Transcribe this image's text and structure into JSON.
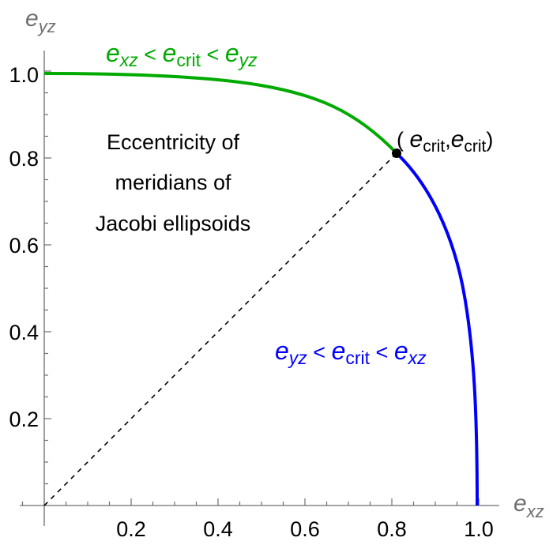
{
  "chart_data": {
    "type": "line",
    "title": "",
    "xlabel": "e_xz",
    "ylabel": "e_yz",
    "xlim": [
      -0.055,
      1.05
    ],
    "ylim": [
      -0.07,
      1.05
    ],
    "grid": false,
    "x_ticks": [
      "0.2",
      "0.4",
      "0.6",
      "0.8",
      "1.0"
    ],
    "y_ticks": [
      "0.2",
      "0.4",
      "0.6",
      "0.8",
      "1.0"
    ],
    "series": [
      {
        "name": "e_xz < e_crit < e_yz",
        "color": "#00aa00",
        "x": [
          0.0,
          0.08,
          0.171,
          0.262,
          0.353,
          0.444,
          0.535,
          0.625,
          0.716,
          0.765,
          0.811
        ],
        "y": [
          0.995,
          0.994,
          0.991,
          0.987,
          0.98,
          0.975,
          0.958,
          0.933,
          0.891,
          0.86,
          0.811
        ]
      },
      {
        "name": "e_yz < e_crit < e_xz",
        "color": "#0000ff",
        "x": [
          0.811,
          0.862,
          0.907,
          0.935,
          0.94,
          0.96,
          0.975,
          0.985,
          0.99,
          0.995,
          0.996
        ],
        "y": [
          0.811,
          0.745,
          0.673,
          0.6,
          0.618,
          0.527,
          0.436,
          0.345,
          0.3,
          0.109,
          0.0
        ]
      },
      {
        "name": "diagonal",
        "color": "#000000",
        "style": "dashed",
        "x": [
          0.0,
          0.811
        ],
        "y": [
          0.0,
          0.811
        ]
      }
    ],
    "points": [
      {
        "label": "( e_crit , e_crit )",
        "x": 0.811,
        "y": 0.811,
        "color": "#000000"
      }
    ],
    "annotations": [
      "Eccentricity of",
      "meridians of",
      "Jacobi ellipsoids"
    ]
  },
  "labels": {
    "x_axis": {
      "base": "e",
      "sub": "xz"
    },
    "y_axis": {
      "base": "e",
      "sub": "yz"
    },
    "green_region": {
      "a": "e",
      "a_sub": "xz",
      "op1": " < ",
      "b": "e",
      "b_sub": "crit",
      "op2": " < ",
      "c": "e",
      "c_sub": "yz"
    },
    "blue_region": {
      "a": "e",
      "a_sub": "yz",
      "op1": " < ",
      "b": "e",
      "b_sub": "crit",
      "op2": " < ",
      "c": "e",
      "c_sub": "xz"
    },
    "crit_point": {
      "open": "( ",
      "e1": "e",
      "sub1": "crit",
      "comma": ",",
      "e2": "e",
      "sub2": "crit",
      "close": ")"
    },
    "description": [
      "Eccentricity of",
      "meridians of",
      "Jacobi ellipsoids"
    ],
    "x_ticks": [
      "0.2",
      "0.4",
      "0.6",
      "0.8",
      "1.0"
    ],
    "y_ticks": [
      "0.2",
      "0.4",
      "0.6",
      "0.8",
      "1.0"
    ]
  },
  "colors": {
    "green": "#00aa00",
    "blue": "#0000ff",
    "axis": "#6e6e6e"
  }
}
